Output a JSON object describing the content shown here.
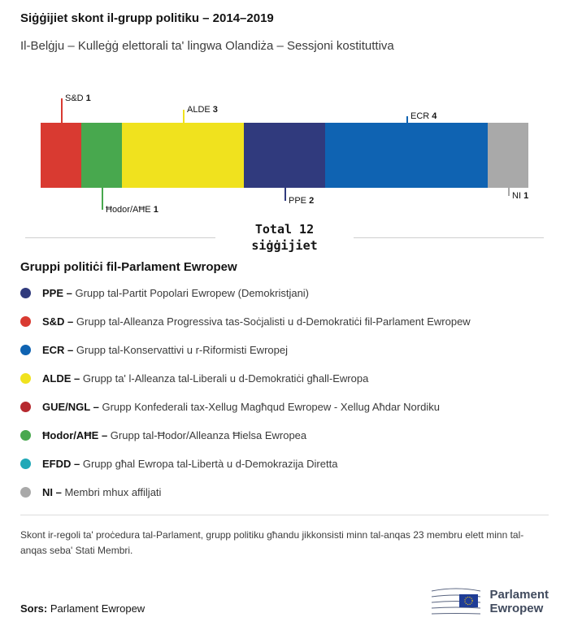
{
  "header": {
    "title": "Siġġijiet skont il-grupp politiku – 2014–2019",
    "subtitle": "Il-Belġju – Kulleġġ elettorali ta' lingwa Olandiża – Sessjoni kostituttiva"
  },
  "chart_data": {
    "type": "bar",
    "variant": "horizontal-stacked-seats",
    "title": "Siġġijiet skont il-grupp politiku – 2014–2019",
    "total": 12,
    "total_label_line1": "Total 12",
    "total_label_line2": "siġġijiet",
    "segments": [
      {
        "label": "S&D",
        "value": 1,
        "color": "#d93a31",
        "label_position": "above",
        "tick": 30
      },
      {
        "label": "Ħodor/AĦE",
        "value": 1,
        "color": "#48a84e",
        "label_position": "below",
        "tick": 27
      },
      {
        "label": "ALDE",
        "value": 3,
        "color": "#f0e21e",
        "label_position": "above",
        "tick": 16
      },
      {
        "label": "PPE",
        "value": 2,
        "color": "#303a7d",
        "label_position": "below",
        "tick": 16
      },
      {
        "label": "ECR",
        "value": 4,
        "color": "#0f63b2",
        "label_position": "above",
        "tick": 8
      },
      {
        "label": "NI",
        "value": 1,
        "color": "#a9a9a9",
        "label_position": "below",
        "tick": 10
      }
    ]
  },
  "legend": {
    "heading": "Gruppi politiċi fil-Parlament Ewropew",
    "separator": "–",
    "items": [
      {
        "abbr": "PPE",
        "color": "#303a7d",
        "desc": "Grupp tal-Partit Popolari Ewropew (Demokristjani)"
      },
      {
        "abbr": "S&D",
        "color": "#d93a31",
        "desc": "Grupp tal-Alleanza Progressiva tas-Soċjalisti u d-Demokratiċi fil-Parlament Ewropew"
      },
      {
        "abbr": "ECR",
        "color": "#0f63b2",
        "desc": "Grupp tal-Konservattivi u r-Riformisti Ewropej"
      },
      {
        "abbr": "ALDE",
        "color": "#f0e21e",
        "desc": "Grupp ta' l-Alleanza tal-Liberali u d-Demokratiċi għall-Ewropa"
      },
      {
        "abbr": "GUE/NGL",
        "color": "#b6292f",
        "desc": "Grupp Konfederali tax-Xellug Magħqud Ewropew - Xellug Aħdar Nordiku"
      },
      {
        "abbr": "Ħodor/AĦE",
        "color": "#48a84e",
        "desc": "Grupp tal-Ħodor/Alleanza Ħielsa Ewropea"
      },
      {
        "abbr": "EFDD",
        "color": "#20a8b7",
        "desc": "Grupp għal Ewropa tal-Libertà u d-Demokrazija Diretta"
      },
      {
        "abbr": "NI",
        "color": "#a9a9a9",
        "desc": "Membri mhux affiljati"
      }
    ]
  },
  "footer": {
    "note": "Skont ir-regoli ta' proċedura tal-Parlament, grupp politiku għandu jikkonsisti minn tal-anqas 23 membru elett minn tal-anqas seba' Stati Membri.",
    "source_label": "Sors:",
    "source_value": "Parlament Ewropew",
    "logo_line1": "Parlament",
    "logo_line2": "Ewropew"
  }
}
